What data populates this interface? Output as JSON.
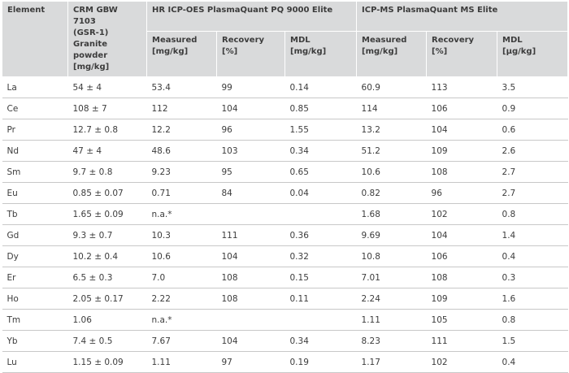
{
  "headers": {
    "element": "Element",
    "crm": "CRM GBW 7103\n(GSR-1)\nGranite powder\n[mg/kg]",
    "icpoes": "HR ICP-OES PlasmaQuant PQ 9000 Elite",
    "icpms": "ICP-MS PlasmaQuant MS Elite",
    "oes_measured": "Measured\n[mg/kg]",
    "oes_recovery": "Recovery\n[%]",
    "oes_mdl": "MDL\n[mg/kg]",
    "ms_measured": "Measured\n[mg/kg]",
    "ms_recovery": "Recovery\n[%]",
    "ms_mdl": "MDL\n[µg/kg]"
  },
  "rows": [
    {
      "el": "La",
      "crm": "54 ± 4",
      "oes_meas": "53.4",
      "oes_rec": "99",
      "oes_mdl": "0.14",
      "ms_meas": "60.9",
      "ms_rec": "113",
      "ms_mdl": "3.5"
    },
    {
      "el": "Ce",
      "crm": "108 ± 7",
      "oes_meas": "112",
      "oes_rec": "104",
      "oes_mdl": "0.85",
      "ms_meas": "114",
      "ms_rec": "106",
      "ms_mdl": "0.9"
    },
    {
      "el": "Pr",
      "crm": "12.7 ± 0.8",
      "oes_meas": "12.2",
      "oes_rec": "96",
      "oes_mdl": "1.55",
      "ms_meas": "13.2",
      "ms_rec": "104",
      "ms_mdl": "0.6"
    },
    {
      "el": "Nd",
      "crm": "47 ± 4",
      "oes_meas": "48.6",
      "oes_rec": "103",
      "oes_mdl": "0.34",
      "ms_meas": "51.2",
      "ms_rec": "109",
      "ms_mdl": "2.6"
    },
    {
      "el": "Sm",
      "crm": "9.7 ± 0.8",
      "oes_meas": "9.23",
      "oes_rec": "95",
      "oes_mdl": "0.65",
      "ms_meas": "10.6",
      "ms_rec": "108",
      "ms_mdl": "2.7"
    },
    {
      "el": "Eu",
      "crm": "0.85 ± 0.07",
      "oes_meas": "0.71",
      "oes_rec": "84",
      "oes_mdl": "0.04",
      "ms_meas": "0.82",
      "ms_rec": "96",
      "ms_mdl": "2.7"
    },
    {
      "el": "Tb",
      "crm": "1.65 ± 0.09",
      "oes_meas": "n.a.*",
      "oes_rec": "",
      "oes_mdl": "",
      "ms_meas": "1.68",
      "ms_rec": "102",
      "ms_mdl": "0.8"
    },
    {
      "el": "Gd",
      "crm": "9.3 ± 0.7",
      "oes_meas": "10.3",
      "oes_rec": "111",
      "oes_mdl": "0.36",
      "ms_meas": "9.69",
      "ms_rec": "104",
      "ms_mdl": "1.4"
    },
    {
      "el": "Dy",
      "crm": "10.2 ± 0.4",
      "oes_meas": "10.6",
      "oes_rec": "104",
      "oes_mdl": "0.32",
      "ms_meas": "10.8",
      "ms_rec": "106",
      "ms_mdl": "0.4"
    },
    {
      "el": "Er",
      "crm": "6.5 ± 0.3",
      "oes_meas": "7.0",
      "oes_rec": "108",
      "oes_mdl": "0.15",
      "ms_meas": "7.01",
      "ms_rec": "108",
      "ms_mdl": "0.3"
    },
    {
      "el": "Ho",
      "crm": "2.05 ± 0.17",
      "oes_meas": "2.22",
      "oes_rec": "108",
      "oes_mdl": "0.11",
      "ms_meas": "2.24",
      "ms_rec": "109",
      "ms_mdl": "1.6"
    },
    {
      "el": "Tm",
      "crm": "1.06",
      "oes_meas": "n.a.*",
      "oes_rec": "",
      "oes_mdl": "",
      "ms_meas": "1.11",
      "ms_rec": "105",
      "ms_mdl": "0.8"
    },
    {
      "el": "Yb",
      "crm": "7.4 ± 0.5",
      "oes_meas": "7.67",
      "oes_rec": "104",
      "oes_mdl": "0.34",
      "ms_meas": "8.23",
      "ms_rec": "111",
      "ms_mdl": "1.5"
    },
    {
      "el": "Lu",
      "crm": "1.15 ± 0.09",
      "oes_meas": "1.11",
      "oes_rec": "97",
      "oes_mdl": "0.19",
      "ms_meas": "1.17",
      "ms_rec": "102",
      "ms_mdl": "0.4"
    }
  ]
}
